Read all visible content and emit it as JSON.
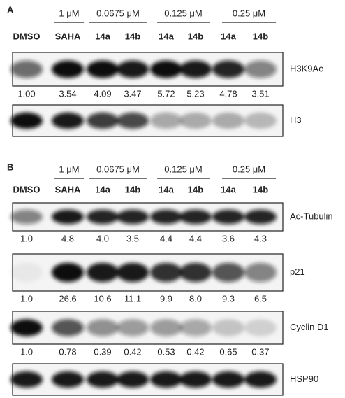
{
  "panels": [
    {
      "label": "A",
      "groups": [
        "1 μM",
        "0.0675 μM",
        "0.125 μM",
        "0.25 μM"
      ],
      "lanes": [
        "DMSO",
        "SAHA",
        "14a",
        "14b",
        "14a",
        "14b",
        "14a",
        "14b"
      ],
      "blots": [
        {
          "name": "H3K9Ac",
          "quant": [
            "1.00",
            "3.54",
            "4.09",
            "3.47",
            "5.72",
            "5.23",
            "4.78",
            "3.51"
          ]
        },
        {
          "name": "H3"
        }
      ]
    },
    {
      "label": "B",
      "groups": [
        "1 μM",
        "0.0675 μM",
        "0.125 μM",
        "0.25 μM"
      ],
      "lanes": [
        "DMSO",
        "SAHA",
        "14a",
        "14b",
        "14a",
        "14b",
        "14a",
        "14b"
      ],
      "blots": [
        {
          "name": "Ac-Tubulin",
          "quant": [
            "1.0",
            "4.8",
            "4.0",
            "3.5",
            "4.4",
            "4.4",
            "3.6",
            "4.3"
          ]
        },
        {
          "name": "p21",
          "quant": [
            "1.0",
            "26.6",
            "10.6",
            "11.1",
            "9.9",
            "8.0",
            "9.3",
            "6.5"
          ]
        },
        {
          "name": "Cyclin D1",
          "quant": [
            "1.0",
            "0.78",
            "0.39",
            "0.42",
            "0.53",
            "0.42",
            "0.65",
            "0.37"
          ]
        },
        {
          "name": "HSP90"
        }
      ]
    }
  ]
}
